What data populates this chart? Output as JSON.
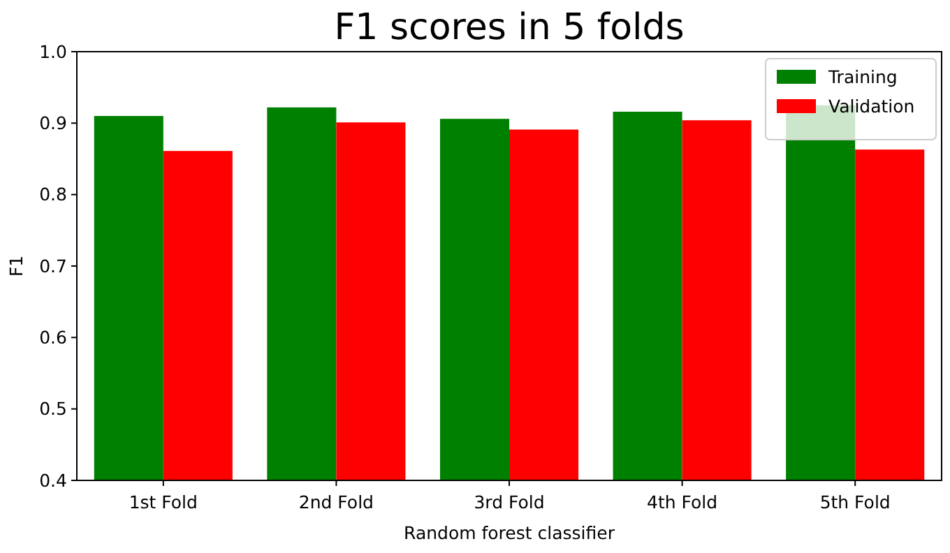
{
  "chart_data": {
    "type": "bar",
    "title": "F1 scores in 5 folds",
    "xlabel": "Random forest classifier",
    "ylabel": "F1",
    "categories": [
      "1st Fold",
      "2nd Fold",
      "3rd Fold",
      "4th Fold",
      "5th Fold"
    ],
    "series": [
      {
        "name": "Training",
        "color": "#008000",
        "values": [
          0.91,
          0.922,
          0.906,
          0.916,
          0.925
        ]
      },
      {
        "name": "Validation",
        "color": "#ff0000",
        "values": [
          0.861,
          0.901,
          0.891,
          0.904,
          0.863
        ]
      }
    ],
    "ylim": [
      0.4,
      1.0
    ],
    "yticks": [
      0.4,
      0.5,
      0.6,
      0.7,
      0.8,
      0.9,
      {
        "value": 1.0,
        "label": "1.0"
      }
    ],
    "legend": "top right"
  }
}
